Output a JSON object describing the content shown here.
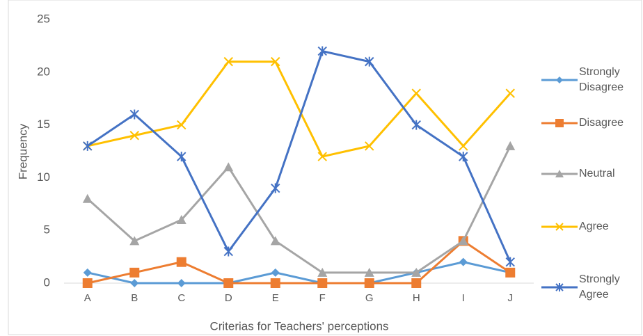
{
  "chart_data": {
    "type": "line",
    "x_label": "Criterias for Teachers' perceptions",
    "y_label": "Frequency",
    "categories": [
      "A",
      "B",
      "C",
      "D",
      "E",
      "F",
      "G",
      "H",
      "I",
      "J"
    ],
    "series": [
      {
        "name": "Strongly Disagree",
        "color": "#5b9bd5",
        "marker": "diamond",
        "values": [
          1,
          0,
          0,
          0,
          1,
          0,
          0,
          1,
          2,
          1
        ]
      },
      {
        "name": "Disagree",
        "color": "#ed7d31",
        "marker": "square",
        "values": [
          0,
          1,
          2,
          0,
          0,
          0,
          0,
          0,
          4,
          1
        ]
      },
      {
        "name": "Neutral",
        "color": "#a5a5a5",
        "marker": "triangle",
        "values": [
          8,
          4,
          6,
          11,
          4,
          1,
          1,
          1,
          4,
          13
        ]
      },
      {
        "name": "Agree",
        "color": "#ffc000",
        "marker": "x",
        "values": [
          13,
          14,
          15,
          21,
          21,
          12,
          13,
          18,
          13,
          18
        ]
      },
      {
        "name": "Strongly Agree",
        "color": "#4472c4",
        "marker": "asterisk",
        "values": [
          13,
          16,
          12,
          3,
          9,
          22,
          21,
          15,
          12,
          2
        ]
      }
    ],
    "ylim": [
      0,
      25
    ],
    "yticks": [
      0,
      5,
      10,
      15,
      20,
      25
    ],
    "grid": false,
    "legend": "right"
  }
}
